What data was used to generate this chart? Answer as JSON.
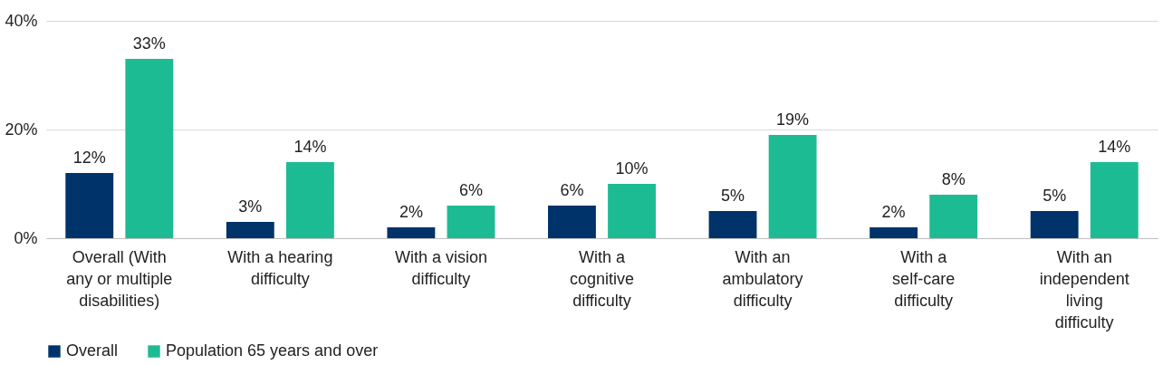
{
  "chart_data": {
    "type": "bar",
    "categories": [
      "Overall (With any or multiple disabilities)",
      "With a hearing difficulty",
      "With a vision difficulty",
      "With a cognitive difficulty",
      "With an ambulatory difficulty",
      "With a self-care difficulty",
      "With an independent living difficulty"
    ],
    "series": [
      {
        "name": "Overall",
        "color": "#003369",
        "values": [
          12,
          3,
          2,
          6,
          5,
          2,
          5
        ],
        "value_labels": [
          "12%",
          "3%",
          "2%",
          "6%",
          "5%",
          "2%",
          "5%"
        ]
      },
      {
        "name": "Population 65 years and over",
        "color": "#1dbb94",
        "values": [
          33,
          14,
          6,
          10,
          19,
          8,
          14
        ],
        "value_labels": [
          "33%",
          "14%",
          "6%",
          "10%",
          "19%",
          "8%",
          "14%"
        ]
      }
    ],
    "ylim": [
      0,
      40
    ],
    "yticks": [
      {
        "value": 0,
        "label": "0%"
      },
      {
        "value": 20,
        "label": "20%"
      },
      {
        "value": 40,
        "label": "40%"
      }
    ],
    "grid": "y",
    "legend": "bottom"
  }
}
